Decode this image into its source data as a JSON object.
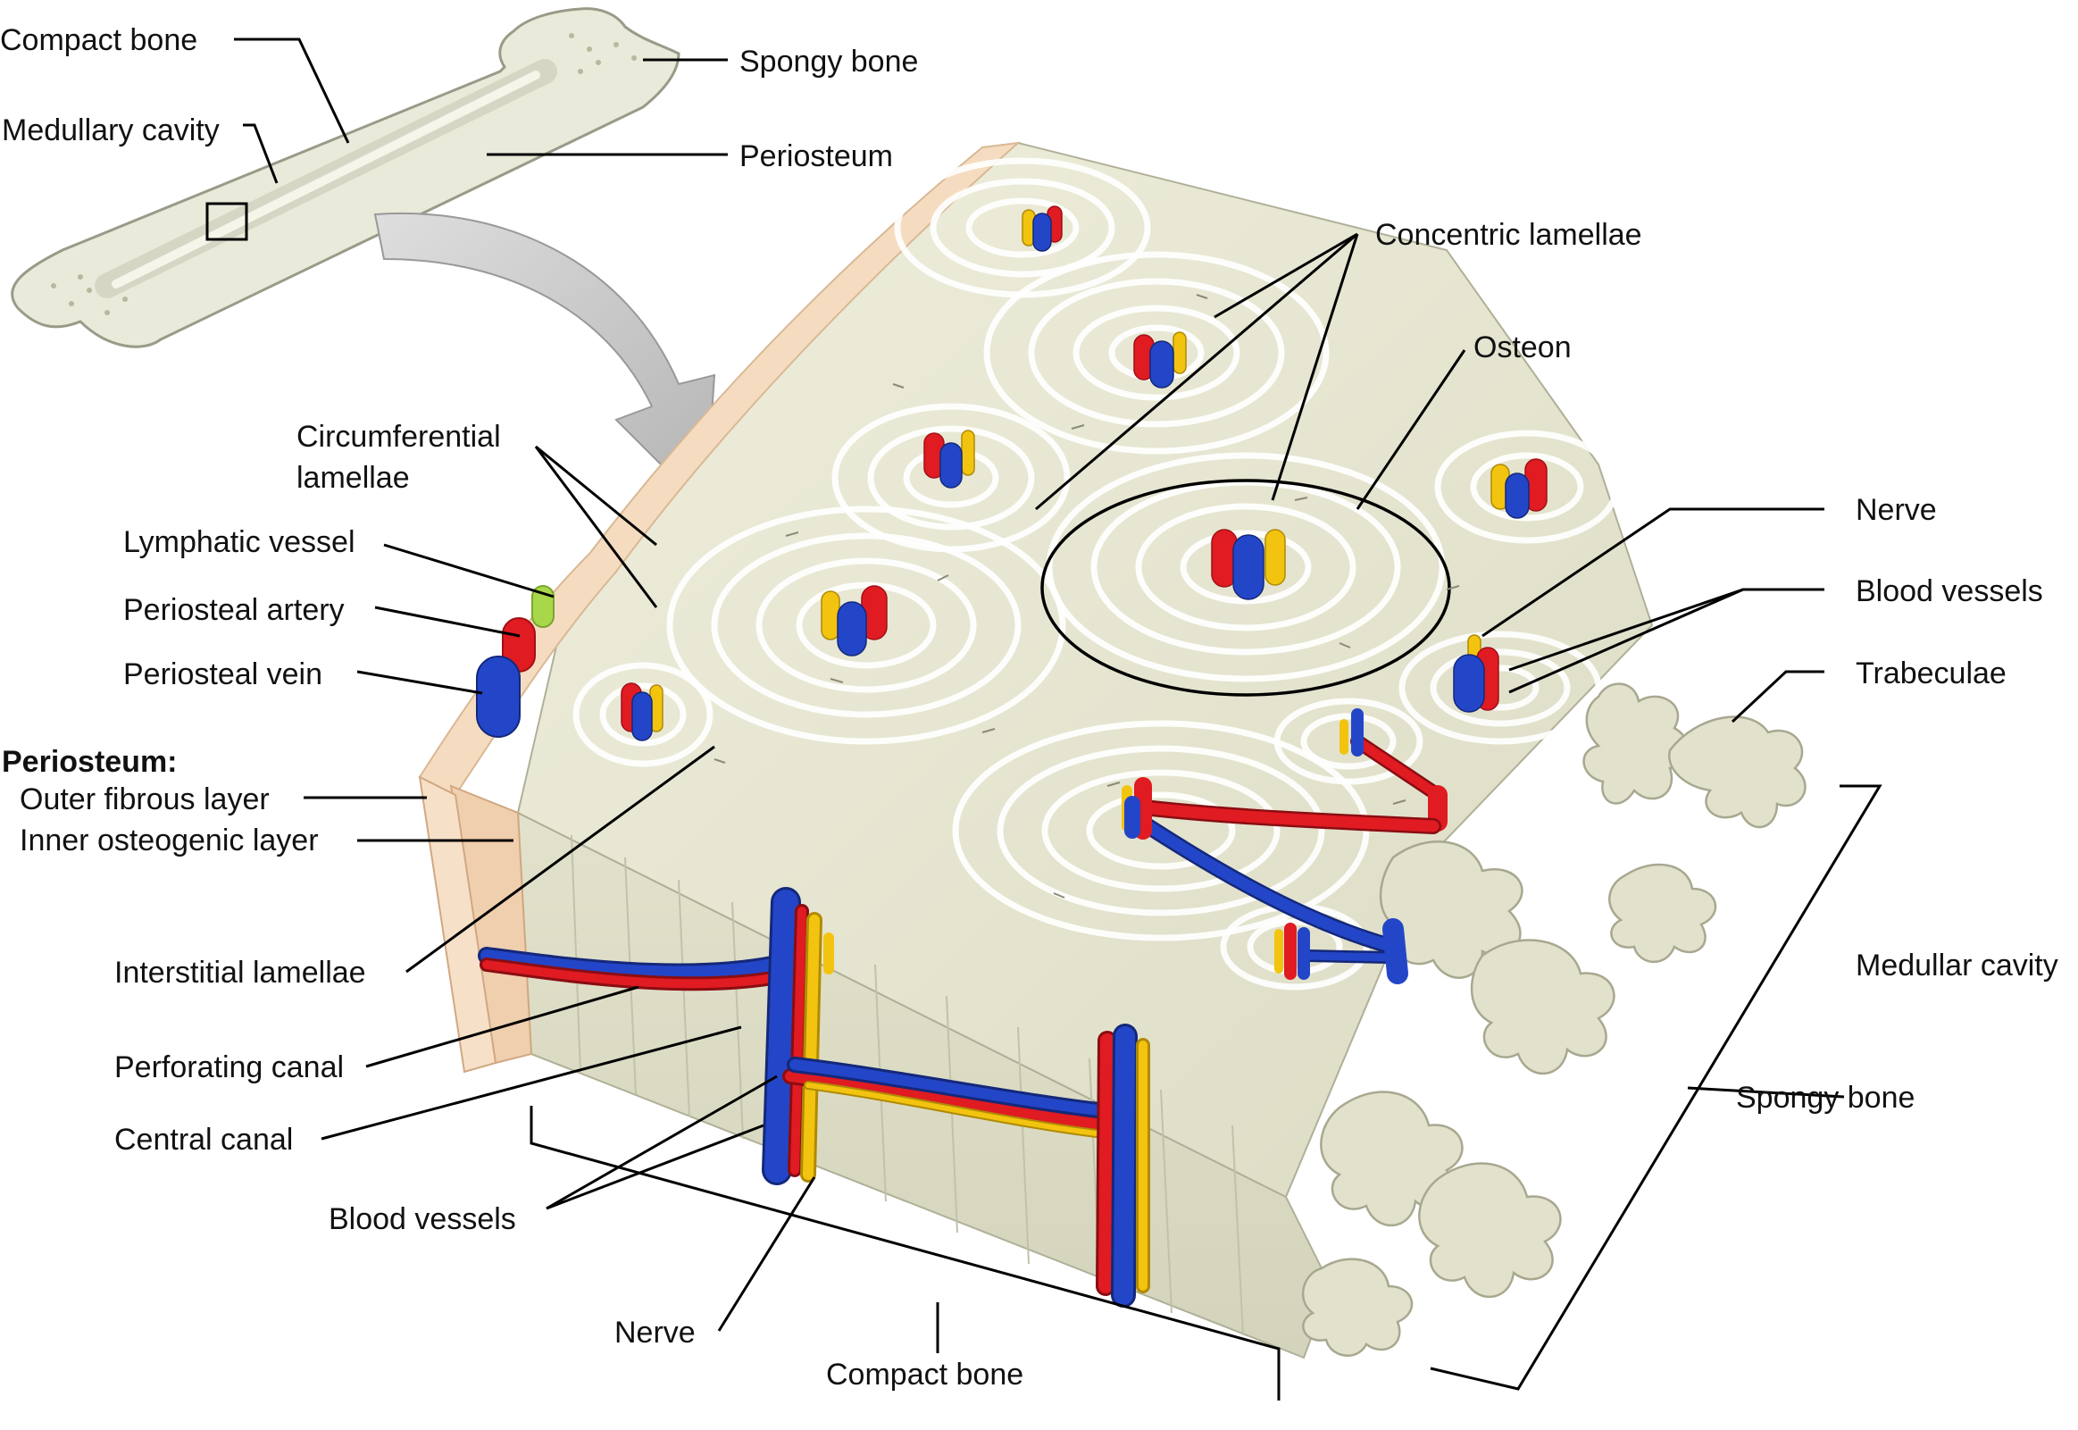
{
  "labels": {
    "compact_bone_top": "Compact bone",
    "medullary_cavity": "Medullary cavity",
    "spongy_bone_top": "Spongy bone",
    "periosteum_top": "Periosteum",
    "concentric_lamellae": "Concentric lamellae",
    "osteon": "Osteon",
    "circumferential_lamellae_1": "Circumferential",
    "circumferential_lamellae_2": "lamellae",
    "lymphatic_vessel": "Lymphatic vessel",
    "periosteal_artery": "Periosteal artery",
    "periosteal_vein": "Periosteal vein",
    "periosteum_heading": "Periosteum:",
    "outer_fibrous_layer": "Outer fibrous layer",
    "inner_osteogenic_layer": "Inner osteogenic layer",
    "interstitial_lamellae": "Interstitial lamellae",
    "perforating_canal": "Perforating canal",
    "central_canal": "Central canal",
    "blood_vessels_bottom": "Blood vessels",
    "nerve_bottom": "Nerve",
    "compact_bone_bottom": "Compact bone",
    "nerve_right": "Nerve",
    "blood_vessels_right": "Blood vessels",
    "trabeculae": "Trabeculae",
    "medullar_cavity": "Medullar cavity",
    "spongy_bone_right": "Spongy bone"
  },
  "colors": {
    "bone": "#e6e6d2",
    "bone_dark": "#cfcfb8",
    "periosteum": "#f5dcc0",
    "artery": "#e01b22",
    "vein": "#2346c8",
    "nerve": "#f2c40f",
    "lymph": "#a8d84a",
    "arrow": "#c8c8c8"
  }
}
